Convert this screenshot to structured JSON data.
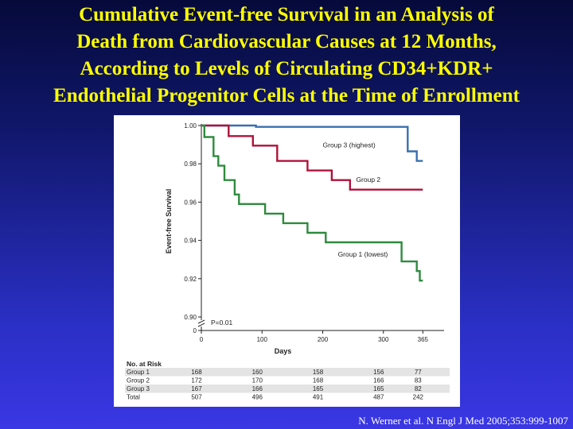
{
  "slide": {
    "title_lines": [
      "Cumulative Event-free Survival in an Analysis of",
      "Death from Cardiovascular Causes at 12 Months,",
      "According to Levels of Circulating CD34+KDR+",
      "Endothelial Progenitor Cells at the Time of Enrollment"
    ],
    "citation": "N. Werner et al. N Engl J Med 2005;353:999-1007"
  },
  "chart_data": {
    "type": "line",
    "xlabel": "Days",
    "ylabel": "Event-free Survival",
    "xlim": [
      0,
      400
    ],
    "ylim": [
      0.9,
      1.0
    ],
    "x_ticks": [
      0,
      100,
      200,
      300,
      365
    ],
    "x_tick_labels": [
      "0",
      "100",
      "200",
      "300",
      "365"
    ],
    "y_ticks": [
      1.0,
      0.98,
      0.96,
      0.94,
      0.92,
      0.9
    ],
    "y_tick_labels": [
      "1.00",
      "0.98",
      "0.96",
      "0.94",
      "0.92",
      "0.90"
    ],
    "y_zero_label": "0",
    "annotation": "P=0.01",
    "step": true,
    "series": [
      {
        "name": "Group 3 (highest)",
        "color": "#3a6fb0",
        "points": [
          [
            0,
            1.0
          ],
          [
            90,
            1.0
          ],
          [
            90,
            0.9993
          ],
          [
            340,
            0.9993
          ],
          [
            340,
            0.9865
          ],
          [
            355,
            0.9865
          ],
          [
            355,
            0.9815
          ],
          [
            365,
            0.9815
          ]
        ]
      },
      {
        "name": "Group 2",
        "color": "#b0123a",
        "points": [
          [
            0,
            1.0
          ],
          [
            45,
            1.0
          ],
          [
            45,
            0.9945
          ],
          [
            85,
            0.9945
          ],
          [
            85,
            0.9895
          ],
          [
            125,
            0.9895
          ],
          [
            125,
            0.9815
          ],
          [
            175,
            0.9815
          ],
          [
            175,
            0.9765
          ],
          [
            215,
            0.9765
          ],
          [
            215,
            0.9715
          ],
          [
            245,
            0.9715
          ],
          [
            245,
            0.9665
          ],
          [
            365,
            0.9665
          ]
        ]
      },
      {
        "name": "Group 1 (lowest)",
        "color": "#2e8b3e",
        "points": [
          [
            0,
            1.0
          ],
          [
            5,
            1.0
          ],
          [
            5,
            0.994
          ],
          [
            20,
            0.994
          ],
          [
            20,
            0.984
          ],
          [
            28,
            0.984
          ],
          [
            28,
            0.979
          ],
          [
            38,
            0.979
          ],
          [
            38,
            0.9715
          ],
          [
            55,
            0.9715
          ],
          [
            55,
            0.964
          ],
          [
            62,
            0.964
          ],
          [
            62,
            0.959
          ],
          [
            105,
            0.959
          ],
          [
            105,
            0.954
          ],
          [
            135,
            0.954
          ],
          [
            135,
            0.949
          ],
          [
            175,
            0.949
          ],
          [
            175,
            0.944
          ],
          [
            205,
            0.944
          ],
          [
            205,
            0.939
          ],
          [
            330,
            0.939
          ],
          [
            330,
            0.929
          ],
          [
            355,
            0.929
          ],
          [
            355,
            0.924
          ],
          [
            360,
            0.924
          ],
          [
            360,
            0.919
          ],
          [
            365,
            0.919
          ]
        ]
      }
    ],
    "series_labels": [
      {
        "text": "Group 3 (highest)",
        "x": 200,
        "y": 0.9885
      },
      {
        "text": "Group 2",
        "x": 255,
        "y": 0.9705
      },
      {
        "text": "Group 1 (lowest)",
        "x": 225,
        "y": 0.9315
      }
    ],
    "risk_table": {
      "header": "No. at Risk",
      "columns_x": [
        0,
        100,
        200,
        300,
        365
      ],
      "rows": [
        {
          "label": "Group 1",
          "values": [
            "168",
            "160",
            "158",
            "156",
            "77"
          ]
        },
        {
          "label": "Group 2",
          "values": [
            "172",
            "170",
            "168",
            "166",
            "83"
          ]
        },
        {
          "label": "Group 3",
          "values": [
            "167",
            "166",
            "165",
            "165",
            "82"
          ]
        },
        {
          "label": "Total",
          "values": [
            "507",
            "496",
            "491",
            "487",
            "242"
          ]
        }
      ]
    }
  }
}
